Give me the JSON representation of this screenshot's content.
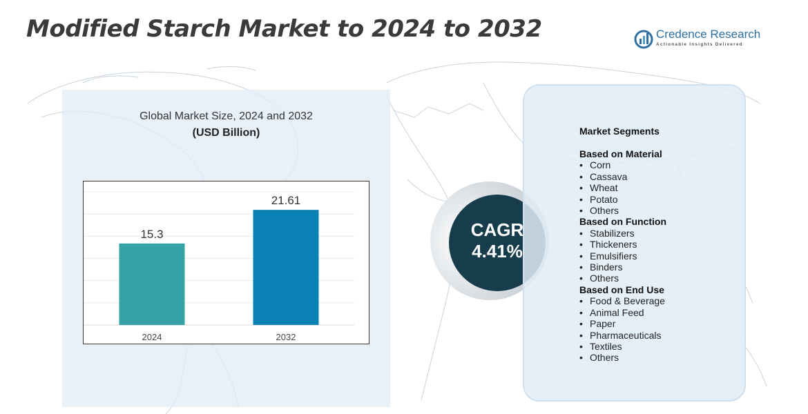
{
  "title": "Modified Starch Market to 2024 to 2032",
  "logo": {
    "name": "Credence Research",
    "tagline": "Actionable Insights Delivered",
    "icon": "bar-chart-logo-icon"
  },
  "chart_panel": {
    "title": "Global Market Size, 2024 and 2032",
    "unit": "(USD Billion)"
  },
  "chart_data": {
    "type": "bar",
    "categories": [
      "2024",
      "2032"
    ],
    "values": [
      15.3,
      21.61
    ],
    "value_labels": [
      "15.3",
      "21.61"
    ],
    "colors": [
      "#35a3a6",
      "#0a81b4"
    ],
    "title": "Global Market Size, 2024 and 2032",
    "ylabel": "(USD Billion)",
    "ylim": [
      0,
      25
    ],
    "grid": true,
    "legend": "none"
  },
  "cagr": {
    "label": "CAGR",
    "value": "4.41%"
  },
  "segments": {
    "title": "Market Segments",
    "groups": [
      {
        "label": "Based on Material",
        "items": [
          "Corn",
          "Cassava",
          "Wheat",
          "Potato",
          "Others"
        ]
      },
      {
        "label": "Based on Function",
        "items": [
          "Stabilizers",
          "Thickeners",
          "Emulsifiers",
          "Binders",
          "Others"
        ]
      },
      {
        "label": "Based on End Use",
        "items": [
          "Food & Beverage",
          "Animal Feed",
          "Paper",
          "Pharmaceuticals",
          "Textiles",
          "Others"
        ]
      }
    ]
  },
  "colors": {
    "title": "#3a3a3a",
    "cagr_circle": "#173d4d",
    "panel": "#e1ecf6",
    "logo": "#2e6fa3"
  }
}
